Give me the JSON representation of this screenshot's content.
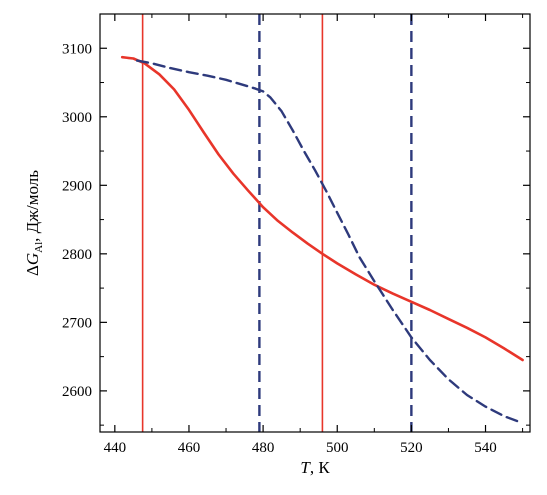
{
  "chart_data": {
    "type": "line",
    "title": "",
    "xlabel": {
      "symbol": "T",
      "unit": ", К"
    },
    "ylabel": {
      "prefix": "Δ",
      "symbol": "G",
      "subscript": "Al",
      "unit": ", Дж/моль"
    },
    "xlim": [
      436,
      552
    ],
    "ylim": [
      2540,
      3150
    ],
    "xticks": [
      440,
      460,
      480,
      500,
      520,
      540
    ],
    "yticks": [
      2600,
      2700,
      2800,
      2900,
      3000,
      3100
    ],
    "grid": false,
    "legend": "none",
    "series": [
      {
        "style": "solid",
        "color": "#e8352a",
        "x": [
          442,
          445,
          448,
          452,
          456,
          460,
          464,
          468,
          472,
          476,
          480,
          484,
          488,
          492,
          496,
          500,
          505,
          510,
          515,
          520,
          525,
          530,
          535,
          540,
          545,
          550
        ],
        "y": [
          3087,
          3085,
          3078,
          3062,
          3040,
          3010,
          2977,
          2945,
          2917,
          2892,
          2868,
          2848,
          2831,
          2815,
          2800,
          2786,
          2770,
          2755,
          2742,
          2730,
          2718,
          2705,
          2692,
          2678,
          2662,
          2645
        ]
      },
      {
        "style": "dashed",
        "color": "#2e3a7c",
        "x": [
          446,
          450,
          455,
          460,
          465,
          470,
          475,
          478,
          480,
          482,
          485,
          488,
          491,
          494,
          497,
          500,
          503,
          506,
          510,
          515,
          520,
          525,
          530,
          535,
          540,
          545,
          550
        ],
        "y": [
          3082,
          3078,
          3071,
          3065,
          3060,
          3054,
          3046,
          3041,
          3037,
          3028,
          3008,
          2980,
          2950,
          2922,
          2892,
          2860,
          2828,
          2795,
          2760,
          2718,
          2678,
          2645,
          2617,
          2594,
          2577,
          2563,
          2553
        ]
      }
    ],
    "vlines": [
      {
        "x": 447.5,
        "style": "solid",
        "color": "#e8352a"
      },
      {
        "x": 496,
        "style": "solid",
        "color": "#e8352a"
      },
      {
        "x": 479,
        "style": "dashed",
        "color": "#2e3a7c"
      },
      {
        "x": 520,
        "style": "dashed",
        "color": "#2e3a7c"
      }
    ]
  }
}
